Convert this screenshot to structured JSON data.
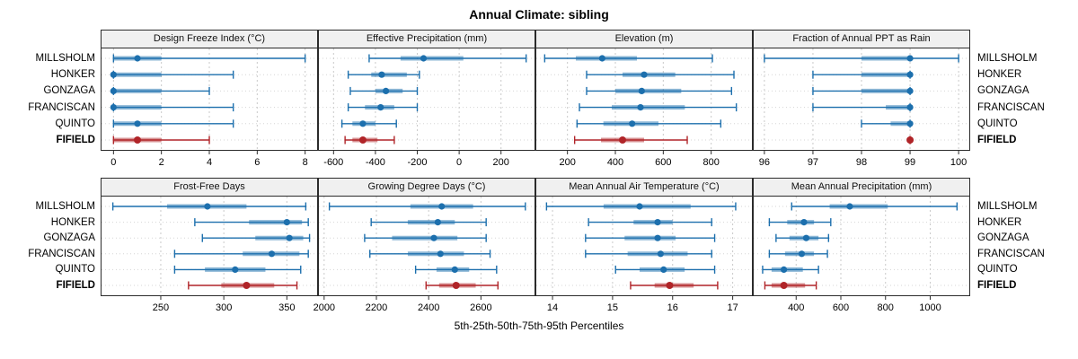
{
  "title": "Annual Climate: sibling",
  "xlabel": "5th-25th-50th-75th-95th Percentiles",
  "sites": [
    "MILLSHOLM",
    "HONKER",
    "GONZAGA",
    "FRANCISCAN",
    "QUINTO",
    "FIFIELD"
  ],
  "highlight_site": "FIFIELD",
  "colors": {
    "series": "#1c6fad",
    "highlight": "#b02428",
    "strip_bg": "#f0f0f0",
    "panel_border": "#2b2b2b",
    "grid": "#c9c9c9",
    "text": "#000000"
  },
  "chart_data": [
    {
      "type": "dotplot-interval",
      "row": "top",
      "title": "Design Freeze Index (°C)",
      "percentile_labels": [
        "5th",
        "25th",
        "50th",
        "75th",
        "95th"
      ],
      "ticks": [
        0,
        2,
        4,
        6,
        8
      ],
      "domain": [
        -0.5,
        8.5
      ],
      "series": [
        {
          "site": "MILLSHOLM",
          "p": [
            0,
            0,
            1,
            2,
            8
          ]
        },
        {
          "site": "HONKER",
          "p": [
            0,
            0,
            0,
            2,
            5
          ]
        },
        {
          "site": "GONZAGA",
          "p": [
            0,
            0,
            0,
            2,
            4
          ]
        },
        {
          "site": "FRANCISCAN",
          "p": [
            0,
            0,
            0,
            2,
            5
          ]
        },
        {
          "site": "QUINTO",
          "p": [
            0,
            0,
            1,
            2,
            5
          ]
        },
        {
          "site": "FIFIELD",
          "p": [
            0,
            0,
            1,
            2,
            4
          ]
        }
      ]
    },
    {
      "type": "dotplot-interval",
      "row": "top",
      "title": "Effective Precipitation (mm)",
      "percentile_labels": [
        "5th",
        "25th",
        "50th",
        "75th",
        "95th"
      ],
      "ticks": [
        -600,
        -400,
        -200,
        0,
        200
      ],
      "domain": [
        -670,
        360
      ],
      "series": [
        {
          "site": "MILLSHOLM",
          "p": [
            -430,
            -280,
            -170,
            20,
            320
          ]
        },
        {
          "site": "HONKER",
          "p": [
            -530,
            -420,
            -370,
            -250,
            -190
          ]
        },
        {
          "site": "GONZAGA",
          "p": [
            -520,
            -400,
            -350,
            -270,
            -200
          ]
        },
        {
          "site": "FRANCISCAN",
          "p": [
            -530,
            -450,
            -375,
            -310,
            -200
          ]
        },
        {
          "site": "QUINTO",
          "p": [
            -560,
            -510,
            -460,
            -400,
            -300
          ]
        },
        {
          "site": "FIFIELD",
          "p": [
            -545,
            -510,
            -460,
            -390,
            -310
          ]
        }
      ]
    },
    {
      "type": "dotplot-interval",
      "row": "top",
      "title": "Elevation (m)",
      "percentile_labels": [
        "5th",
        "25th",
        "50th",
        "75th",
        "95th"
      ],
      "ticks": [
        200,
        400,
        600,
        800
      ],
      "domain": [
        70,
        970
      ],
      "series": [
        {
          "site": "MILLSHOLM",
          "p": [
            105,
            235,
            345,
            490,
            805
          ]
        },
        {
          "site": "HONKER",
          "p": [
            280,
            430,
            520,
            650,
            895
          ]
        },
        {
          "site": "GONZAGA",
          "p": [
            280,
            400,
            510,
            675,
            885
          ]
        },
        {
          "site": "FRANCISCAN",
          "p": [
            250,
            385,
            505,
            690,
            905
          ]
        },
        {
          "site": "QUINTO",
          "p": [
            240,
            350,
            470,
            580,
            840
          ]
        },
        {
          "site": "FIFIELD",
          "p": [
            230,
            340,
            430,
            520,
            700
          ]
        }
      ]
    },
    {
      "type": "dotplot-interval",
      "row": "top",
      "title": "Fraction of Annual PPT as Rain",
      "percentile_labels": [
        "5th",
        "25th",
        "50th",
        "75th",
        "95th"
      ],
      "ticks": [
        96,
        97,
        98,
        99,
        100
      ],
      "domain": [
        95.78,
        100.22
      ],
      "series": [
        {
          "site": "MILLSHOLM",
          "p": [
            96,
            98,
            99,
            99,
            100
          ]
        },
        {
          "site": "HONKER",
          "p": [
            97,
            98,
            99,
            99,
            99
          ]
        },
        {
          "site": "GONZAGA",
          "p": [
            97,
            98,
            99,
            99,
            99
          ]
        },
        {
          "site": "FRANCISCAN",
          "p": [
            97,
            98.5,
            99,
            99,
            99
          ]
        },
        {
          "site": "QUINTO",
          "p": [
            98,
            98.6,
            99,
            99,
            99
          ]
        },
        {
          "site": "FIFIELD",
          "p": [
            99,
            99,
            99,
            99,
            99
          ]
        }
      ]
    },
    {
      "type": "dotplot-interval",
      "row": "bottom",
      "title": "Frost-Free Days",
      "percentile_labels": [
        "5th",
        "25th",
        "50th",
        "75th",
        "95th"
      ],
      "ticks": [
        250,
        300,
        350
      ],
      "domain": [
        203,
        374
      ],
      "series": [
        {
          "site": "MILLSHOLM",
          "p": [
            212,
            255,
            287,
            318,
            365
          ]
        },
        {
          "site": "HONKER",
          "p": [
            277,
            320,
            350,
            362,
            367
          ]
        },
        {
          "site": "GONZAGA",
          "p": [
            283,
            325,
            352,
            363,
            368
          ]
        },
        {
          "site": "FRANCISCAN",
          "p": [
            261,
            315,
            338,
            360,
            367
          ]
        },
        {
          "site": "QUINTO",
          "p": [
            261,
            285,
            309,
            333,
            361
          ]
        },
        {
          "site": "FIFIELD",
          "p": [
            272,
            298,
            318,
            340,
            358
          ]
        }
      ]
    },
    {
      "type": "dotplot-interval",
      "row": "bottom",
      "title": "Growing Degree Days (°C)",
      "percentile_labels": [
        "5th",
        "25th",
        "50th",
        "75th",
        "95th"
      ],
      "ticks": [
        2000,
        2200,
        2400,
        2600
      ],
      "domain": [
        1980,
        2805
      ],
      "series": [
        {
          "site": "MILLSHOLM",
          "p": [
            2020,
            2330,
            2450,
            2570,
            2770
          ]
        },
        {
          "site": "HONKER",
          "p": [
            2180,
            2320,
            2435,
            2500,
            2620
          ]
        },
        {
          "site": "GONZAGA",
          "p": [
            2155,
            2260,
            2420,
            2510,
            2620
          ]
        },
        {
          "site": "FRANCISCAN",
          "p": [
            2175,
            2320,
            2445,
            2535,
            2635
          ]
        },
        {
          "site": "QUINTO",
          "p": [
            2350,
            2430,
            2500,
            2555,
            2660
          ]
        },
        {
          "site": "FIFIELD",
          "p": [
            2390,
            2440,
            2505,
            2580,
            2665
          ]
        }
      ]
    },
    {
      "type": "dotplot-interval",
      "row": "bottom",
      "title": "Mean Annual Air Temperature (°C)",
      "percentile_labels": [
        "5th",
        "25th",
        "50th",
        "75th",
        "95th"
      ],
      "ticks": [
        14,
        15,
        16,
        17
      ],
      "domain": [
        13.73,
        17.32
      ],
      "series": [
        {
          "site": "MILLSHOLM",
          "p": [
            13.9,
            14.85,
            15.45,
            16.3,
            17.05
          ]
        },
        {
          "site": "HONKER",
          "p": [
            14.6,
            15.35,
            15.75,
            16.0,
            16.65
          ]
        },
        {
          "site": "GONZAGA",
          "p": [
            14.55,
            15.2,
            15.75,
            16.05,
            16.7
          ]
        },
        {
          "site": "FRANCISCAN",
          "p": [
            14.55,
            15.25,
            15.8,
            16.25,
            16.65
          ]
        },
        {
          "site": "QUINTO",
          "p": [
            15.05,
            15.45,
            15.85,
            16.2,
            16.7
          ]
        },
        {
          "site": "FIFIELD",
          "p": [
            15.3,
            15.7,
            15.95,
            16.35,
            16.75
          ]
        }
      ]
    },
    {
      "type": "dotplot-interval",
      "row": "bottom",
      "title": "Mean Annual Precipitation (mm)",
      "percentile_labels": [
        "5th",
        "25th",
        "50th",
        "75th",
        "95th"
      ],
      "ticks": [
        400,
        600,
        800,
        1000
      ],
      "domain": [
        210,
        1175
      ],
      "series": [
        {
          "site": "MILLSHOLM",
          "p": [
            380,
            550,
            640,
            810,
            1120
          ]
        },
        {
          "site": "HONKER",
          "p": [
            280,
            360,
            435,
            480,
            555
          ]
        },
        {
          "site": "GONZAGA",
          "p": [
            310,
            370,
            445,
            500,
            545
          ]
        },
        {
          "site": "FRANCISCAN",
          "p": [
            280,
            350,
            425,
            480,
            540
          ]
        },
        {
          "site": "QUINTO",
          "p": [
            250,
            290,
            345,
            430,
            500
          ]
        },
        {
          "site": "FIFIELD",
          "p": [
            260,
            290,
            345,
            440,
            490
          ]
        }
      ]
    }
  ]
}
